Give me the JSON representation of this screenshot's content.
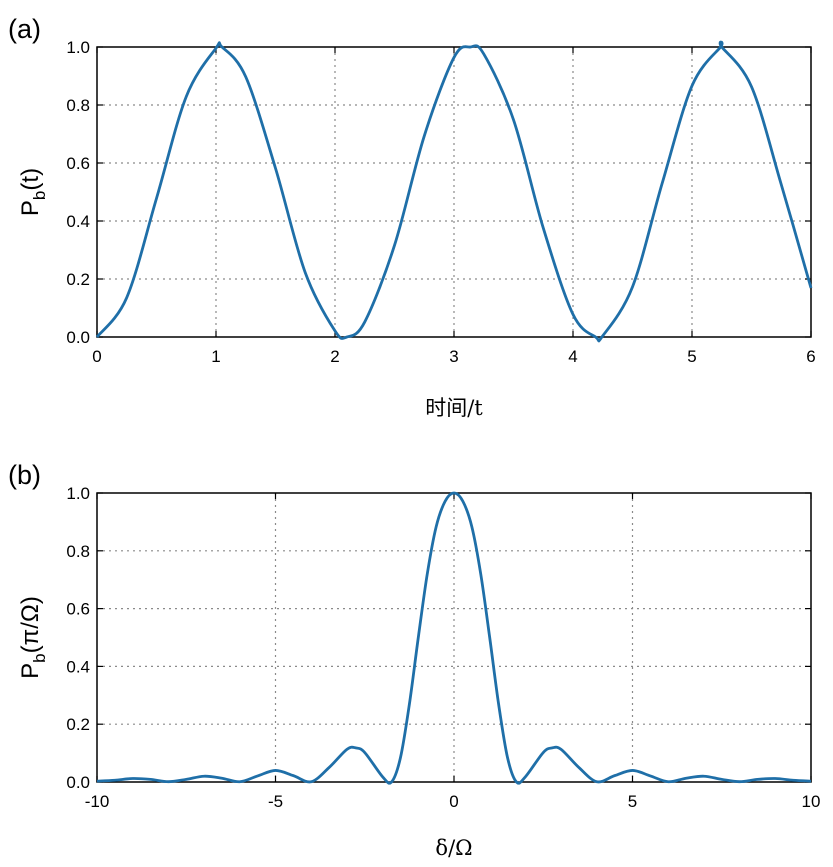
{
  "chart_data": [
    {
      "type": "line",
      "panel_label": "(a)",
      "title": "",
      "xlabel": "时间/t",
      "ylabel_main": "P",
      "ylabel_sub": "b",
      "ylabel_tail": "(t)",
      "xlim": [
        0,
        6
      ],
      "ylim": [
        0,
        1
      ],
      "xticks": [
        "0",
        "1",
        "2",
        "3",
        "4",
        "5",
        "6"
      ],
      "yticks": [
        "0.0",
        "0.2",
        "0.4",
        "0.6",
        "0.8",
        "1.0"
      ],
      "grid": true,
      "series": [
        {
          "color": "#1f6fa8",
          "x": [
            0,
            0.25,
            0.5,
            0.75,
            1.0,
            1.05,
            1.25,
            1.5,
            1.75,
            2.0,
            2.1,
            2.25,
            2.5,
            2.75,
            3.0,
            3.14,
            3.25,
            3.5,
            3.75,
            4.0,
            4.19,
            4.25,
            4.5,
            4.75,
            5.0,
            5.24,
            5.25,
            5.5,
            5.75,
            6.0
          ],
          "y": [
            0.0,
            0.136,
            0.478,
            0.829,
            0.996,
            1.0,
            0.897,
            0.582,
            0.222,
            0.021,
            0.0,
            0.052,
            0.316,
            0.693,
            0.964,
            1.0,
            0.976,
            0.749,
            0.376,
            0.078,
            0.0,
            0.004,
            0.173,
            0.531,
            0.866,
            1.0,
            1.0,
            0.863,
            0.526,
            0.169
          ]
        }
      ]
    },
    {
      "type": "line",
      "panel_label": "(b)",
      "title": "",
      "xlabel": "δ/Ω",
      "ylabel_main": "P",
      "ylabel_sub": "b",
      "ylabel_tail": "(π/Ω)",
      "xlim": [
        -10,
        10
      ],
      "ylim": [
        0,
        1
      ],
      "xticks": [
        "-10",
        "-5",
        "0",
        "5",
        "10"
      ],
      "yticks": [
        "0.0",
        "0.2",
        "0.4",
        "0.6",
        "0.8",
        "1.0"
      ],
      "grid": true,
      "series": [
        {
          "color": "#1f6fa8",
          "x": [
            -10,
            -9.5,
            -9.0,
            -8.5,
            -8.0,
            -7.5,
            -7.0,
            -6.5,
            -6.0,
            -5.5,
            -5.0,
            -4.5,
            -4.0,
            -3.5,
            -3.0,
            -2.75,
            -2.5,
            -2.0,
            -1.75,
            -1.5,
            -1.25,
            -1.0,
            -0.75,
            -0.5,
            -0.25,
            0,
            0.25,
            0.5,
            0.75,
            1.0,
            1.25,
            1.5,
            1.75,
            2.0,
            2.5,
            2.75,
            3.0,
            3.5,
            4.0,
            4.5,
            5.0,
            5.5,
            6.0,
            6.5,
            7.0,
            7.5,
            8.0,
            8.5,
            9.0,
            9.5,
            10
          ],
          "y": [
            0.003,
            0.006,
            0.012,
            0.009,
            0.001,
            0.009,
            0.02,
            0.013,
            0.001,
            0.021,
            0.04,
            0.022,
            0.001,
            0.05,
            0.113,
            0.118,
            0.102,
            0.018,
            0.0,
            0.084,
            0.269,
            0.5,
            0.719,
            0.883,
            0.971,
            1.0,
            0.971,
            0.883,
            0.719,
            0.5,
            0.269,
            0.084,
            0.0,
            0.018,
            0.102,
            0.118,
            0.113,
            0.05,
            0.001,
            0.022,
            0.04,
            0.021,
            0.001,
            0.013,
            0.02,
            0.009,
            0.001,
            0.009,
            0.012,
            0.006,
            0.003
          ]
        }
      ]
    }
  ]
}
